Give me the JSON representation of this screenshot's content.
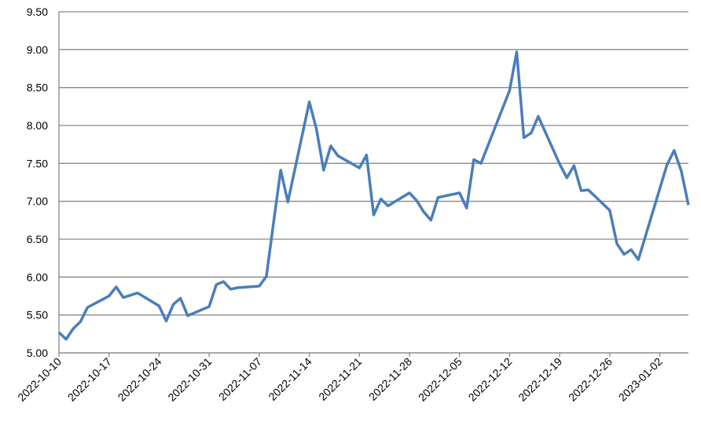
{
  "chart_data": {
    "type": "line",
    "color": "#4a7ebb",
    "grid": true,
    "x": [
      "2022-10-10",
      "2022-10-11",
      "2022-10-12",
      "2022-10-13",
      "2022-10-14",
      "2022-10-17",
      "2022-10-18",
      "2022-10-19",
      "2022-10-21",
      "2022-10-24",
      "2022-10-25",
      "2022-10-26",
      "2022-10-27",
      "2022-10-28",
      "2022-10-31",
      "2022-11-01",
      "2022-11-02",
      "2022-11-03",
      "2022-11-04",
      "2022-11-07",
      "2022-11-08",
      "2022-11-09",
      "2022-11-10",
      "2022-11-11",
      "2022-11-14",
      "2022-11-15",
      "2022-11-16",
      "2022-11-17",
      "2022-11-18",
      "2022-11-21",
      "2022-11-22",
      "2022-11-23",
      "2022-11-24",
      "2022-11-25",
      "2022-11-28",
      "2022-11-29",
      "2022-11-30",
      "2022-12-01",
      "2022-12-02",
      "2022-12-05",
      "2022-12-06",
      "2022-12-07",
      "2022-12-08",
      "2022-12-09",
      "2022-12-12",
      "2022-12-13",
      "2022-12-14",
      "2022-12-15",
      "2022-12-16",
      "2022-12-19",
      "2022-12-20",
      "2022-12-21",
      "2022-12-22",
      "2022-12-23",
      "2022-12-26",
      "2022-12-27",
      "2022-12-28",
      "2022-12-29",
      "2022-12-30",
      "2023-01-03",
      "2023-01-04",
      "2023-01-05",
      "2023-01-06"
    ],
    "values": [
      5.27,
      5.18,
      5.32,
      5.41,
      5.6,
      5.75,
      5.87,
      5.73,
      5.79,
      5.62,
      5.42,
      5.64,
      5.72,
      5.49,
      5.61,
      5.9,
      5.94,
      5.84,
      5.86,
      5.88,
      6.01,
      6.72,
      7.41,
      6.99,
      8.31,
      7.95,
      7.41,
      7.73,
      7.6,
      7.44,
      7.61,
      6.82,
      7.03,
      6.94,
      7.11,
      7.01,
      6.86,
      6.75,
      7.05,
      7.11,
      6.91,
      7.55,
      7.5,
      7.74,
      8.46,
      8.97,
      7.84,
      7.9,
      8.12,
      7.49,
      7.31,
      7.47,
      7.14,
      7.15,
      6.88,
      6.44,
      6.3,
      6.36,
      6.23,
      7.48,
      7.67,
      7.4,
      6.95
    ],
    "xlim": [
      "2022-10-10",
      "2023-01-06"
    ],
    "xticks": [
      "2022-10-10",
      "2022-10-17",
      "2022-10-24",
      "2022-10-31",
      "2022-11-07",
      "2022-11-14",
      "2022-11-21",
      "2022-11-28",
      "2022-12-05",
      "2022-12-12",
      "2022-12-19",
      "2022-12-26",
      "2023-01-02"
    ],
    "ylim": [
      5,
      9.5
    ],
    "yticks": [
      {
        "value": 5,
        "label": "5.00"
      },
      {
        "value": 5.5,
        "label": "5.50"
      },
      {
        "value": 6,
        "label": "6.00"
      },
      {
        "value": 6.5,
        "label": "6.50"
      },
      {
        "value": 7,
        "label": "7.00"
      },
      {
        "value": 7.5,
        "label": "7.50"
      },
      {
        "value": 8,
        "label": "8.00"
      },
      {
        "value": 8.5,
        "label": "8.50"
      },
      {
        "value": 9,
        "label": "9.00"
      },
      {
        "value": 9.5,
        "label": "9.50"
      }
    ]
  }
}
